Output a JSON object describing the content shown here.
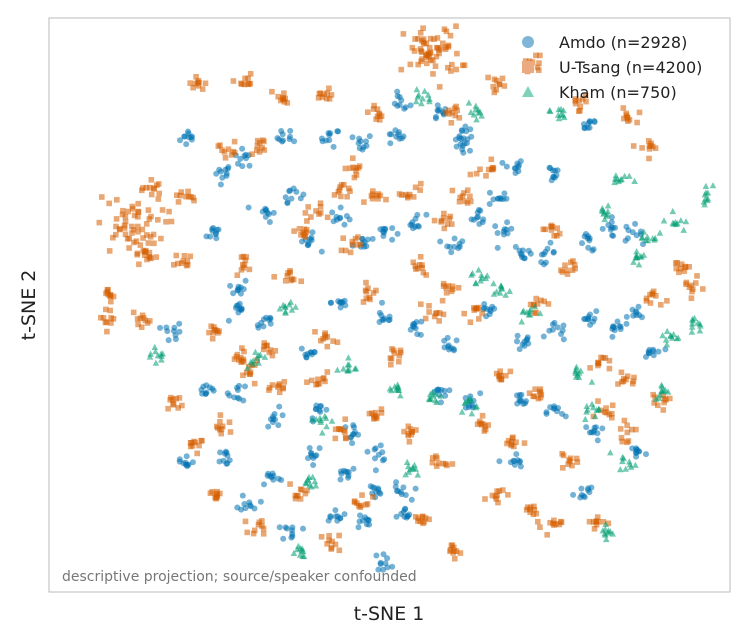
{
  "chart_data": {
    "type": "scatter",
    "xlabel": "t-SNE 1",
    "ylabel": "t-SNE 2",
    "xlim": [
      -60,
      60
    ],
    "ylim": [
      -55,
      55
    ],
    "axis_ticks": false,
    "grid": false,
    "legend_position": "top-right",
    "annotation": "descriptive projection; source/speaker confounded",
    "series": [
      {
        "name": "Amdo (n=2928)",
        "marker": "circle",
        "color": "#0072B2",
        "legend_color": "#7FB6D8",
        "clusters": [
          [
            -37,
            33
          ],
          [
            -31,
            26
          ],
          [
            -27,
            29
          ],
          [
            -19,
            33
          ],
          [
            -11,
            33
          ],
          [
            -5,
            32
          ],
          [
            1,
            33
          ],
          [
            2,
            40
          ],
          [
            9,
            38
          ],
          [
            14,
            31
          ],
          [
            14,
            34
          ],
          [
            20,
            21
          ],
          [
            23,
            27
          ],
          [
            30,
            26
          ],
          [
            37,
            36
          ],
          [
            -32,
            14
          ],
          [
            -28,
            3
          ],
          [
            -23,
            18
          ],
          [
            -18,
            22
          ],
          [
            -15,
            12
          ],
          [
            -9,
            17
          ],
          [
            -5,
            12
          ],
          [
            -1,
            14
          ],
          [
            5,
            16
          ],
          [
            12,
            12
          ],
          [
            17,
            17
          ],
          [
            21,
            14
          ],
          [
            25,
            10
          ],
          [
            29,
            10
          ],
          [
            37,
            12
          ],
          [
            41,
            15
          ],
          [
            45,
            14
          ],
          [
            -28,
            -2
          ],
          [
            -23,
            -4
          ],
          [
            -15,
            -10
          ],
          [
            -9,
            0
          ],
          [
            -1,
            -3
          ],
          [
            5,
            -5
          ],
          [
            11,
            -9
          ],
          [
            18,
            -2
          ],
          [
            25,
            -8
          ],
          [
            31,
            -6
          ],
          [
            37,
            -3
          ],
          [
            42,
            -6
          ],
          [
            46,
            -2
          ],
          [
            49,
            -10
          ],
          [
            -40,
            -6
          ],
          [
            -34,
            -17
          ],
          [
            -28,
            -18
          ],
          [
            -21,
            -23
          ],
          [
            -13,
            -22
          ],
          [
            -7,
            -26
          ],
          [
            -2,
            -30
          ],
          [
            2,
            -38
          ],
          [
            -5,
            -44
          ],
          [
            -1,
            -52
          ],
          [
            9,
            -18
          ],
          [
            15,
            -20
          ],
          [
            24,
            -20
          ],
          [
            31,
            -22
          ],
          [
            38,
            -26
          ],
          [
            46,
            -30
          ],
          [
            -38,
            -32
          ],
          [
            -30,
            -31
          ],
          [
            -22,
            -35
          ],
          [
            -14,
            -30
          ],
          [
            -8,
            -34
          ],
          [
            3,
            -43
          ],
          [
            23,
            -32
          ],
          [
            36,
            -38
          ],
          [
            -26,
            -40
          ],
          [
            -18,
            -46
          ],
          [
            -10,
            -42
          ],
          [
            -3,
            -38
          ]
        ]
      },
      {
        "name": "U-Tsang (n=4200)",
        "marker": "square",
        "color": "#D55E00",
        "legend_color": "#EBAA80",
        "clusters": [
          [
            -48,
            15
          ],
          [
            -44,
            23
          ],
          [
            -38,
            21
          ],
          [
            -30,
            31
          ],
          [
            -27,
            44
          ],
          [
            -20,
            41
          ],
          [
            -12,
            41
          ],
          [
            -2,
            38
          ],
          [
            8,
            50
          ],
          [
            12,
            38
          ],
          [
            20,
            44
          ],
          [
            27,
            48
          ],
          [
            35,
            40
          ],
          [
            44,
            37
          ],
          [
            48,
            31
          ],
          [
            -52,
            2
          ],
          [
            -52,
            -3
          ],
          [
            -46,
            -4
          ],
          [
            -46,
            10
          ],
          [
            -38,
            8
          ],
          [
            -32,
            -6
          ],
          [
            -27,
            8
          ],
          [
            -22,
            -10
          ],
          [
            -18,
            5
          ],
          [
            -12,
            -7
          ],
          [
            -7,
            12
          ],
          [
            -4,
            2
          ],
          [
            1,
            -11
          ],
          [
            6,
            7
          ],
          [
            11,
            3
          ],
          [
            16,
            -2
          ],
          [
            21,
            -15
          ],
          [
            27,
            0
          ],
          [
            33,
            7
          ],
          [
            39,
            -12
          ],
          [
            44,
            -16
          ],
          [
            49,
            1
          ],
          [
            54,
            7
          ],
          [
            56,
            3
          ],
          [
            -40,
            -20
          ],
          [
            -36,
            -28
          ],
          [
            -31,
            -25
          ],
          [
            -26,
            -14
          ],
          [
            -20,
            -17
          ],
          [
            -13,
            -16
          ],
          [
            -9,
            -26
          ],
          [
            -3,
            -23
          ],
          [
            4,
            -26
          ],
          [
            9,
            -32
          ],
          [
            17,
            -25
          ],
          [
            23,
            -28
          ],
          [
            28,
            -18
          ],
          [
            33,
            -32
          ],
          [
            40,
            -22
          ],
          [
            44,
            -26
          ],
          [
            50,
            -20
          ],
          [
            -32,
            -38
          ],
          [
            -24,
            -45
          ],
          [
            -17,
            -38
          ],
          [
            -11,
            -48
          ],
          [
            -5,
            -40
          ],
          [
            6,
            -43
          ],
          [
            12,
            -50
          ],
          [
            20,
            -38
          ],
          [
            26,
            -42
          ],
          [
            30,
            -45
          ],
          [
            38,
            -44
          ],
          [
            -28,
            -11
          ],
          [
            -14,
            18
          ],
          [
            -9,
            22
          ],
          [
            -3,
            21
          ],
          [
            4,
            22
          ],
          [
            10,
            16
          ],
          [
            14,
            21
          ],
          [
            -36,
            44
          ],
          [
            -24,
            31
          ],
          [
            -16,
            14
          ],
          [
            -6,
            27
          ],
          [
            8,
            -2
          ],
          [
            18,
            27
          ],
          [
            30,
            14
          ]
        ]
      },
      {
        "name": "Kham (n=750)",
        "marker": "triangle",
        "color": "#009E73",
        "legend_color": "#7FD2B9",
        "clusters": [
          [
            -43,
            -10
          ],
          [
            -19,
            -1
          ],
          [
            -8,
            -13
          ],
          [
            -12,
            -24
          ],
          [
            -14,
            -36
          ],
          [
            -17,
            -50
          ],
          [
            1,
            -17
          ],
          [
            4,
            -33
          ],
          [
            8,
            -19
          ],
          [
            17,
            5
          ],
          [
            15,
            -20
          ],
          [
            21,
            2
          ],
          [
            26,
            -2
          ],
          [
            35,
            -14
          ],
          [
            38,
            -22
          ],
          [
            44,
            -32
          ],
          [
            40,
            -46
          ],
          [
            51,
            -18
          ],
          [
            52,
            -7
          ],
          [
            57,
            -4
          ],
          [
            43,
            25
          ],
          [
            48,
            13
          ],
          [
            53,
            16
          ],
          [
            59,
            22
          ],
          [
            6,
            41
          ],
          [
            16,
            38
          ],
          [
            31,
            38
          ],
          [
            40,
            18
          ],
          [
            46,
            9
          ],
          [
            -25,
            -11
          ]
        ]
      }
    ]
  }
}
